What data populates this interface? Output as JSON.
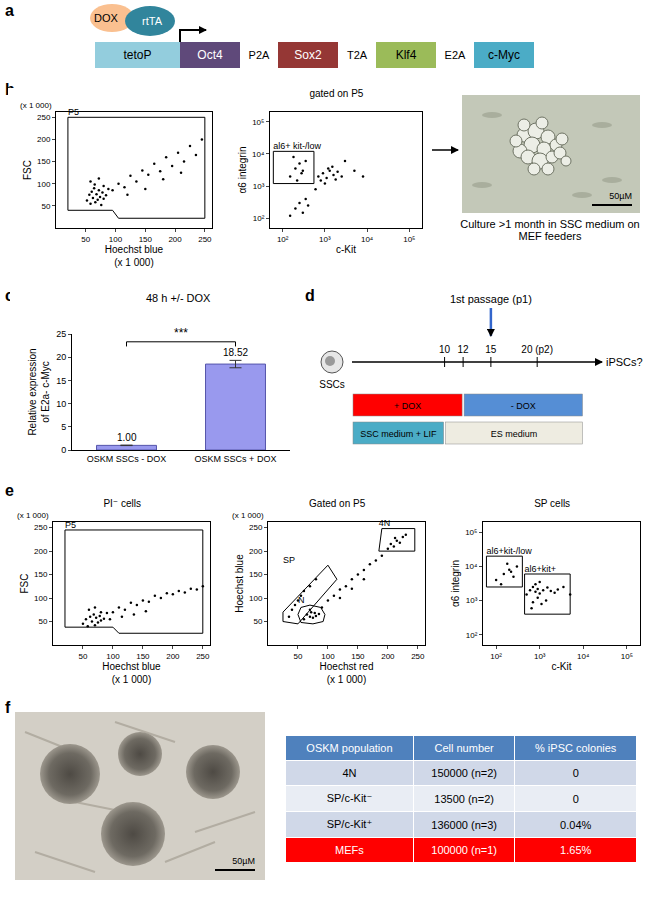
{
  "panels": [
    "a",
    "b",
    "c",
    "d",
    "e",
    "f"
  ],
  "construct": {
    "inducer": {
      "text": "DOX",
      "color": "#fac090"
    },
    "activator": {
      "text": "rtTA",
      "color": "#31859c"
    },
    "promoter": {
      "text": "tetoP",
      "color": "#93cddd"
    },
    "genes": [
      {
        "text": "Oct4",
        "color": "#5f497a"
      },
      {
        "text": "Sox2",
        "color": "#953735"
      },
      {
        "text": "Klf4",
        "color": "#9bbb59"
      },
      {
        "text": "c-Myc",
        "color": "#4bacc6"
      }
    ],
    "linkers": [
      "P2A",
      "T2A",
      "E2A"
    ]
  },
  "chart_data": [
    {
      "type": "scatter",
      "panel": "b",
      "xlabel": "Hoechst blue",
      "xlabel_note": "(x 1 000)",
      "ylabel": "FSC",
      "ylabel_note": "(x 1 000)",
      "x": [
        52,
        56,
        58,
        60,
        62,
        64,
        66,
        68,
        70,
        72,
        74,
        76,
        78,
        80,
        84,
        88,
        58,
        65,
        72,
        80,
        95,
        105,
        115,
        125,
        135,
        145,
        155,
        165,
        175,
        185,
        195,
        205,
        215,
        225,
        235,
        245,
        120,
        150,
        180,
        210
      ],
      "y": [
        62,
        75,
        55,
        82,
        68,
        90,
        58,
        76,
        64,
        85,
        70,
        52,
        80,
        66,
        74,
        88,
        105,
        98,
        112,
        95,
        85,
        100,
        92,
        118,
        105,
        130,
        120,
        145,
        128,
        160,
        140,
        170,
        150,
        185,
        165,
        200,
        75,
        88,
        110,
        125
      ],
      "color": "#000000",
      "xlim": [
        0,
        262
      ],
      "ylim": [
        0,
        262
      ],
      "xticks": [
        50,
        100,
        150,
        200,
        250
      ],
      "yticks": [
        50,
        100,
        150,
        200,
        250
      ],
      "gates": [
        {
          "label": "P5",
          "x": [
            20,
            250,
            250,
            105,
            95,
            20,
            20
          ],
          "y": [
            250,
            250,
            22,
            22,
            40,
            40,
            250
          ]
        }
      ]
    },
    {
      "type": "scatter",
      "panel": "b",
      "title": "gated on P5",
      "xlabel": "c-Kit",
      "ylabel": "α6 integrin",
      "log": true,
      "x": [
        150,
        200,
        250,
        300,
        180,
        220,
        280,
        350,
        700,
        900,
        1100,
        1300,
        1600,
        2000,
        2500,
        800,
        1200,
        1800,
        1000,
        1500,
        200,
        250,
        300,
        400,
        350,
        150,
        5000,
        8000,
        600,
        3000
      ],
      "y": [
        2000,
        3500,
        5000,
        3000,
        8000,
        1500,
        2500,
        6000,
        2000,
        2500,
        1800,
        3000,
        2200,
        2800,
        2000,
        1500,
        3500,
        1600,
        1200,
        4000,
        200,
        300,
        150,
        250,
        400,
        120,
        3000,
        2000,
        800,
        6000
      ],
      "color": "#000000",
      "xlim": [
        50,
        200000
      ],
      "ylim": [
        50,
        200000
      ],
      "xticks": [
        {
          "value": 100,
          "label": "10²"
        },
        {
          "value": 1000,
          "label": "10³"
        },
        {
          "value": 10000,
          "label": "10⁴"
        },
        {
          "value": 100000,
          "label": "10⁵"
        }
      ],
      "yticks": [
        {
          "value": 100,
          "label": "10²"
        },
        {
          "value": 1000,
          "label": "10³"
        },
        {
          "value": 10000,
          "label": "10⁴"
        },
        {
          "value": 100000,
          "label": "10⁵"
        }
      ],
      "gates": [
        {
          "label": "al6+ kit-/low",
          "x": [
            60,
            550,
            550,
            60,
            60
          ],
          "y": [
            1200,
            1200,
            12000,
            12000,
            1200
          ]
        }
      ]
    },
    {
      "type": "bar",
      "panel": "c",
      "title": "48 h +/- DOX",
      "ylabel": [
        "Relative expression",
        "of E2a- c-Myc"
      ],
      "categories": [
        "OSKM SSCs - DOX",
        "OSKM SSCs + DOX"
      ],
      "values": [
        1.0,
        18.52
      ],
      "value_labels": [
        "1.00",
        "18.52"
      ],
      "error": [
        0.05,
        0.8
      ],
      "color": "#9999ee",
      "ylim": [
        0,
        25
      ],
      "yticks": [
        0,
        5,
        10,
        15,
        20,
        25
      ],
      "data_labels": true,
      "grid": false,
      "annotations": [
        "***"
      ]
    },
    {
      "type": "scatter",
      "panel": "e",
      "title": "PI⁻ cells",
      "xlabel": "Hoechst blue",
      "xlabel_note": "(x 1 000)",
      "ylabel": "FSC",
      "ylabel_note": "(x 1 000)",
      "x": [
        50,
        55,
        58,
        62,
        65,
        68,
        70,
        72,
        75,
        78,
        80,
        85,
        60,
        70,
        80,
        90,
        100,
        110,
        120,
        130,
        140,
        150,
        160,
        170,
        180,
        190,
        200,
        210,
        220,
        230,
        240,
        250,
        95,
        115,
        135,
        155
      ],
      "y": [
        45,
        55,
        40,
        60,
        50,
        65,
        42,
        58,
        48,
        62,
        52,
        56,
        75,
        80,
        70,
        68,
        70,
        80,
        75,
        90,
        85,
        95,
        92,
        105,
        100,
        110,
        108,
        115,
        112,
        120,
        118,
        125,
        55,
        60,
        65,
        72
      ],
      "color": "#000000",
      "xlim": [
        0,
        262
      ],
      "ylim": [
        0,
        262
      ],
      "xticks": [
        50,
        100,
        150,
        200,
        250
      ],
      "yticks": [
        50,
        100,
        150,
        200,
        250
      ],
      "gates": [
        {
          "label": "P5",
          "x": [
            20,
            250,
            250,
            110,
            100,
            20,
            20
          ],
          "y": [
            245,
            245,
            25,
            25,
            38,
            38,
            245
          ]
        }
      ]
    },
    {
      "type": "scatter",
      "panel": "e",
      "title": "Gated on P5",
      "xlabel": "Hoechst red",
      "xlabel_note": "(x 1 000)",
      "ylabel": "Hoechst blue",
      "ylabel_note": "(x 1 000)",
      "x": [
        60,
        65,
        70,
        72,
        75,
        78,
        80,
        85,
        70,
        90,
        100,
        110,
        120,
        130,
        140,
        150,
        160,
        170,
        180,
        190,
        200,
        205,
        210,
        215,
        220,
        225,
        230,
        212,
        35,
        40,
        45,
        50,
        55,
        60,
        70,
        80,
        120,
        140,
        160
      ],
      "y": [
        55,
        65,
        60,
        70,
        58,
        68,
        62,
        66,
        75,
        80,
        95,
        105,
        118,
        125,
        140,
        150,
        160,
        172,
        180,
        190,
        205,
        215,
        210,
        222,
        218,
        230,
        235,
        228,
        60,
        75,
        85,
        95,
        105,
        115,
        125,
        140,
        100,
        120,
        140
      ],
      "color": "#000000",
      "xlim": [
        0,
        262
      ],
      "ylim": [
        0,
        262
      ],
      "xticks": [
        50,
        100,
        150,
        200,
        250
      ],
      "yticks": [
        50,
        100,
        150,
        200,
        250
      ],
      "gates": [
        {
          "label": "SP",
          "x": [
            25,
            50,
            115,
            100,
            25,
            25
          ],
          "y": [
            50,
            45,
            140,
            170,
            70,
            50
          ]
        },
        {
          "label": "N",
          "x": [
            55,
            75,
            92,
            95,
            88,
            70,
            55,
            50,
            55
          ],
          "y": [
            48,
            45,
            50,
            65,
            80,
            85,
            80,
            65,
            48
          ]
        },
        {
          "label": "4N",
          "x": [
            185,
            245,
            245,
            190,
            185
          ],
          "y": [
            200,
            200,
            248,
            248,
            200
          ]
        }
      ]
    },
    {
      "type": "scatter",
      "panel": "e",
      "title": "SP cells",
      "xlabel": "c-Kit",
      "ylabel": "α6 integrin",
      "log": true,
      "x": [
        100,
        150,
        200,
        250,
        300,
        180,
        130,
        220,
        500,
        600,
        700,
        800,
        900,
        1000,
        1200,
        1500,
        1800,
        2200,
        2600,
        700,
        900,
        1100,
        1400,
        800,
        1000,
        650,
        3500,
        5000
      ],
      "y": [
        4000,
        6000,
        8000,
        5000,
        10000,
        12000,
        3000,
        7000,
        1500,
        2000,
        2500,
        1800,
        2200,
        1600,
        2000,
        2400,
        1900,
        1700,
        2100,
        900,
        1200,
        800,
        1000,
        3000,
        3500,
        600,
        2500,
        1500
      ],
      "color": "#000000",
      "xlim": [
        50,
        200000
      ],
      "ylim": [
        50,
        200000
      ],
      "xticks": [
        {
          "value": 100,
          "label": "10²"
        },
        {
          "value": 1000,
          "label": "10³"
        },
        {
          "value": 10000,
          "label": "10⁴"
        },
        {
          "value": 100000,
          "label": "10⁵"
        }
      ],
      "yticks": [
        {
          "value": 100,
          "label": "10²"
        },
        {
          "value": 1000,
          "label": "10³"
        },
        {
          "value": 10000,
          "label": "10⁴"
        },
        {
          "value": 100000,
          "label": "10⁵"
        }
      ],
      "gates": [
        {
          "label": "al6+kit-/low",
          "x": [
            60,
            400,
            400,
            60,
            60
          ],
          "y": [
            2500,
            2500,
            20000,
            20000,
            2500
          ]
        },
        {
          "label": "al6+kit+",
          "x": [
            450,
            5000,
            5000,
            450,
            450
          ],
          "y": [
            400,
            400,
            6000,
            6000,
            400
          ]
        }
      ]
    }
  ],
  "images": [
    {
      "panel": "b",
      "caption": "Culture >1 month in SSC medium on MEF feeders",
      "scale_bar": "50µM"
    },
    {
      "panel": "f",
      "scale_bar": "50µM"
    }
  ],
  "timeline": {
    "panel": "d",
    "start_label": "SSCs",
    "end_label": "iPSCs?",
    "xlim": [
      0,
      27
    ],
    "ticks": [
      10,
      12,
      15,
      {
        "value": 20,
        "label": "20 (p2)"
      }
    ],
    "event": {
      "label": "1st passage (p1)",
      "value": 15
    },
    "dox": [
      {
        "label": "+ DOX",
        "from": 0,
        "to": 12,
        "color": "#ff0000"
      },
      {
        "label": "- DOX",
        "from": 12,
        "to": 25,
        "color": "#558ed5"
      }
    ],
    "medium": [
      {
        "label": "SSC medium + LIF",
        "from": 0,
        "to": 10,
        "color": "#4bacc6"
      },
      {
        "label": "ES medium",
        "from": 10,
        "to": 25,
        "color": "#eeece1"
      }
    ]
  },
  "table": {
    "panel": "f",
    "header": [
      "OSKM population",
      "Cell number",
      "% iPSC colonies"
    ],
    "rows": [
      [
        "4N",
        "150000 (n=2)",
        "0"
      ],
      [
        "SP/c-Kit⁻",
        "13500 (n=2)",
        "0"
      ],
      [
        "SP/c-Kit⁺",
        "136000 (n=3)",
        "0.04%"
      ],
      [
        "MEFs",
        "100000 (n=1)",
        "1.65%"
      ]
    ],
    "color": "#4f81bd",
    "colors": [
      "#d0d8e8",
      "#e9edf4",
      "#d0d8e8",
      "#ff0000"
    ]
  }
}
